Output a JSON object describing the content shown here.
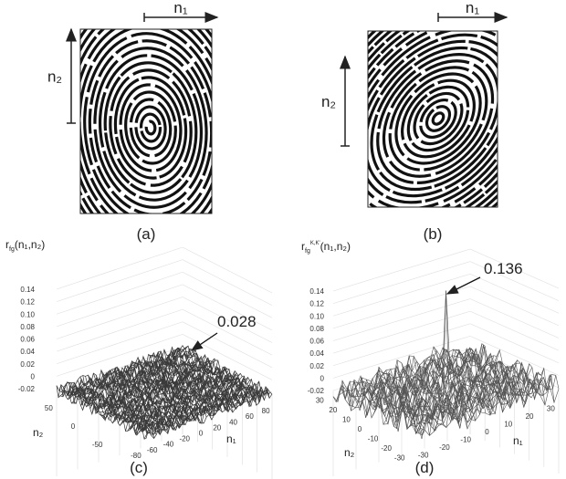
{
  "panels": [
    {
      "caption": "(a)",
      "axis_h": "n₁",
      "axis_v": "n₂"
    },
    {
      "caption": "(b)",
      "axis_h": "n₁",
      "axis_v": "n₂"
    },
    {
      "caption": "(c)",
      "z_label": {
        "base": "r",
        "sub": "fg",
        "args": "(n₁,n₂)"
      },
      "z_ticks": [
        "0.14",
        "0.12",
        "0.10",
        "0.08",
        "0.06",
        "0.04",
        "0.02",
        "0",
        "-0.02"
      ],
      "n2_ticks": [
        "50",
        "0",
        "-50"
      ],
      "n1_ticks": [
        "-80",
        "-60",
        "-40",
        "-20",
        "0",
        "20",
        "40",
        "60",
        "80"
      ],
      "n1_label": "n₁",
      "n2_label": "n₂",
      "peak_label": "0.028"
    },
    {
      "caption": "(d)",
      "z_label": {
        "base": "r",
        "sub": "fg",
        "sup": "K,K'",
        "args": "(n₁,n₂)"
      },
      "z_ticks": [
        "0.14",
        "0.12",
        "0.10",
        "0.08",
        "0.06",
        "0.04",
        "0.02",
        "0",
        "-0.02"
      ],
      "n2_ticks": [
        "30",
        "20",
        "10",
        "0",
        "-10",
        "-20",
        "-30"
      ],
      "n1_ticks": [
        "-30",
        "-20",
        "-10",
        "0",
        "10",
        "20",
        "30"
      ],
      "n1_label": "n₁",
      "n2_label": "n₂",
      "peak_label": "0.136"
    }
  ]
}
